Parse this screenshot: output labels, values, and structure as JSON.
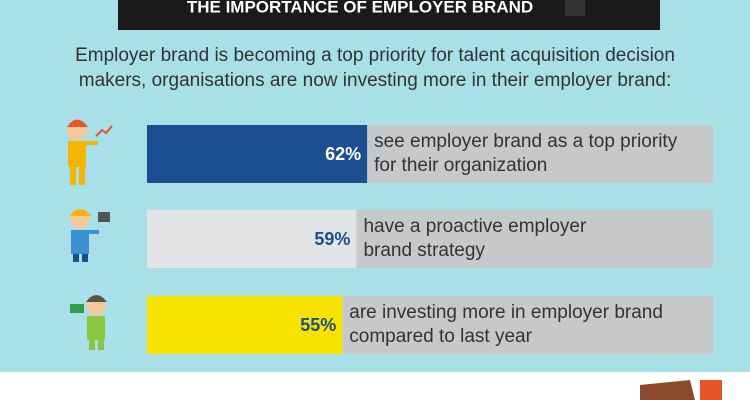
{
  "chart_data": {
    "type": "bar",
    "title": "THE IMPORTANCE OF EMPLOYER BRAND",
    "subtitle": [
      "Employer brand is becoming a top priority for talent acquisition decision",
      "makers, organisations are now investing more in their employer brand:"
    ],
    "categories": [
      [
        "see employer brand as a top priority",
        "for their organization"
      ],
      [
        "have a proactive employer",
        "brand strategy"
      ],
      [
        "are investing more in employer brand",
        "compared to last year"
      ]
    ],
    "values": [
      62,
      59,
      55
    ],
    "value_labels": [
      "62%",
      "59%",
      "55%"
    ],
    "colors": [
      "#1b4f91",
      "#e2e3e4",
      "#f8e300"
    ],
    "label_colors": [
      "#ffffff",
      "#1b4f91",
      "#1b4f91"
    ]
  }
}
